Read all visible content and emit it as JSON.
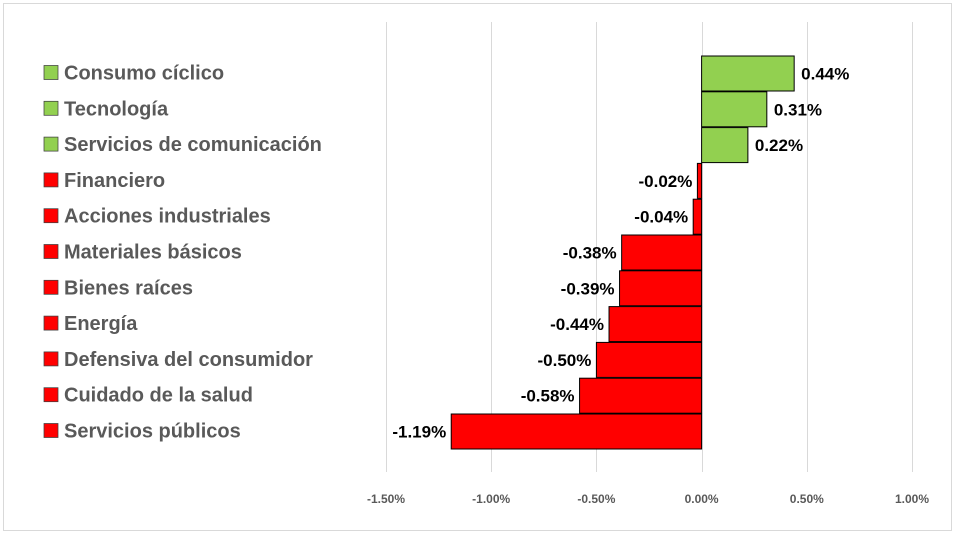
{
  "chart_data": {
    "type": "bar",
    "orientation": "horizontal",
    "categories": [
      "Consumo cíclico",
      "Tecnología",
      "Servicios de comunicación",
      "Financiero",
      "Acciones industriales",
      "Materiales básicos",
      "Bienes raíces",
      "Energía",
      "Defensiva del consumidor",
      "Cuidado de la salud",
      "Servicios públicos"
    ],
    "values": [
      0.44,
      0.31,
      0.22,
      -0.02,
      -0.04,
      -0.38,
      -0.39,
      -0.44,
      -0.5,
      -0.58,
      -1.19
    ],
    "value_labels": [
      "0.44%",
      "0.31%",
      "0.22%",
      "-0.02%",
      "-0.04%",
      "-0.38%",
      "-0.39%",
      "-0.44%",
      "-0.50%",
      "-0.58%",
      "-1.19%"
    ],
    "unit": "%",
    "xlim": [
      -1.5,
      1.0
    ],
    "xticks": [
      -1.5,
      -1.0,
      -0.5,
      0.0,
      0.5,
      1.0
    ],
    "xtick_labels": [
      "-1.50%",
      "-1.00%",
      "-0.50%",
      "0.00%",
      "0.50%",
      "1.00%"
    ],
    "title": "",
    "xlabel": "",
    "ylabel": "",
    "grid": "vertical",
    "legend_position": "left",
    "colors": {
      "positive": "#92d050",
      "negative": "#ff0000",
      "outline": "#000000",
      "grid": "#d9d9d9",
      "legend_text": "#595959"
    }
  }
}
